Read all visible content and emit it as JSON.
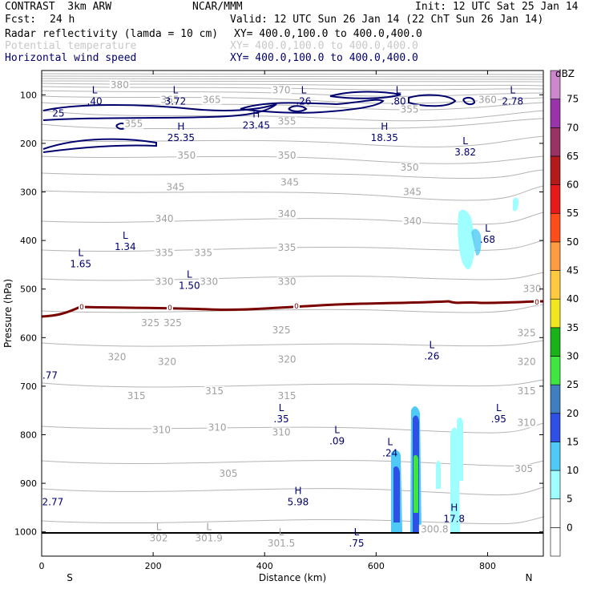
{
  "header": {
    "model": "CONTRAST  3km ARW",
    "institution": "NCAR/MMM",
    "init": "Init: 12 UTC Sat 25 Jan 14",
    "fcst_label": "Fcst:",
    "fcst_value": "24 h",
    "valid": "Valid: 12 UTC Sun 26 Jan 14 (22 ChT Sun 26 Jan 14)"
  },
  "fields": [
    {
      "name": "Radar reflectivity (lamda = 10 cm)",
      "xy": "XY= 400.0,100.0 to 400.0,400.0",
      "color": "#000000"
    },
    {
      "name": "Potential temperature",
      "xy": "XY= 400.0,100.0 to 400.0,400.0",
      "color": "#c8c8c8"
    },
    {
      "name": "Horizontal wind speed",
      "xy": "XY= 400.0,100.0 to 400.0,400.0",
      "color": "#00006e"
    }
  ],
  "chart_data": {
    "type": "cross-section contour",
    "xlabel": "Distance (km)",
    "ylabel": "Pressure (hPa)",
    "xlim": [
      0,
      900
    ],
    "ylim": [
      1050,
      50
    ],
    "x_ticks": [
      "0",
      "200",
      "400",
      "600",
      "800"
    ],
    "x_tick_values": [
      0,
      200,
      400,
      600,
      800
    ],
    "y_ticks": [
      "100",
      "200",
      "300",
      "400",
      "500",
      "600",
      "700",
      "800",
      "900",
      "1000"
    ],
    "y_tick_values": [
      100,
      200,
      300,
      400,
      500,
      600,
      700,
      800,
      900,
      1000
    ],
    "left_end_label": "S",
    "right_end_label": "N",
    "theta_labels": [
      {
        "text": "380",
        "x": 140,
        "p": 85
      },
      {
        "text": "365",
        "x": 230,
        "p": 115
      },
      {
        "text": "365",
        "x": 305,
        "p": 115
      },
      {
        "text": "370",
        "x": 430,
        "p": 95
      },
      {
        "text": "355",
        "x": 165,
        "p": 165
      },
      {
        "text": "355",
        "x": 440,
        "p": 160
      },
      {
        "text": "355",
        "x": 660,
        "p": 135
      },
      {
        "text": "360",
        "x": 800,
        "p": 115
      },
      {
        "text": "350",
        "x": 260,
        "p": 230
      },
      {
        "text": "350",
        "x": 440,
        "p": 230
      },
      {
        "text": "350",
        "x": 660,
        "p": 255
      },
      {
        "text": "345",
        "x": 240,
        "p": 295
      },
      {
        "text": "345",
        "x": 445,
        "p": 285
      },
      {
        "text": "345",
        "x": 665,
        "p": 305
      },
      {
        "text": "340",
        "x": 220,
        "p": 360
      },
      {
        "text": "340",
        "x": 440,
        "p": 350
      },
      {
        "text": "340",
        "x": 665,
        "p": 365
      },
      {
        "text": "335",
        "x": 220,
        "p": 430
      },
      {
        "text": "335",
        "x": 290,
        "p": 430
      },
      {
        "text": "335",
        "x": 440,
        "p": 420
      },
      {
        "text": "330",
        "x": 220,
        "p": 490
      },
      {
        "text": "330",
        "x": 300,
        "p": 490
      },
      {
        "text": "330",
        "x": 440,
        "p": 490
      },
      {
        "text": "330",
        "x": 880,
        "p": 505
      },
      {
        "text": "325",
        "x": 195,
        "p": 575
      },
      {
        "text": "325",
        "x": 235,
        "p": 575
      },
      {
        "text": "325",
        "x": 430,
        "p": 590
      },
      {
        "text": "325",
        "x": 870,
        "p": 595
      },
      {
        "text": "320",
        "x": 135,
        "p": 645
      },
      {
        "text": "320",
        "x": 225,
        "p": 655
      },
      {
        "text": "320",
        "x": 440,
        "p": 650
      },
      {
        "text": "320",
        "x": 870,
        "p": 655
      },
      {
        "text": "315",
        "x": 170,
        "p": 725
      },
      {
        "text": "315",
        "x": 310,
        "p": 715
      },
      {
        "text": "315",
        "x": 440,
        "p": 725
      },
      {
        "text": "315",
        "x": 870,
        "p": 715
      },
      {
        "text": "310",
        "x": 215,
        "p": 795
      },
      {
        "text": "310",
        "x": 315,
        "p": 790
      },
      {
        "text": "310",
        "x": 430,
        "p": 800
      },
      {
        "text": "310",
        "x": 870,
        "p": 780
      },
      {
        "text": "305",
        "x": 335,
        "p": 885
      },
      {
        "text": "305",
        "x": 865,
        "p": 875
      },
      {
        "text": "300.8",
        "x": 705,
        "p": 1000
      }
    ],
    "wind_labels": [
      {
        "type": "L",
        "value": ".40",
        "x": 95,
        "p": 100
      },
      {
        "type": "L",
        "value": "3.72",
        "x": 240,
        "p": 100
      },
      {
        "type": "L",
        "value": ".26",
        "x": 470,
        "p": 100
      },
      {
        "type": "L",
        "value": ".80",
        "x": 640,
        "p": 100
      },
      {
        "type": "L",
        "value": "2.78",
        "x": 845,
        "p": 100
      },
      {
        "type": "",
        "value": "25",
        "x": 30,
        "p": 125
      },
      {
        "type": "H",
        "value": "23.45",
        "x": 385,
        "p": 150
      },
      {
        "type": "H",
        "value": "25.35",
        "x": 250,
        "p": 175
      },
      {
        "type": "H",
        "value": "18.35",
        "x": 615,
        "p": 175
      },
      {
        "type": "L",
        "value": "3.82",
        "x": 760,
        "p": 205
      },
      {
        "type": "L",
        "value": ".68",
        "x": 800,
        "p": 385
      },
      {
        "type": "L",
        "value": "1.34",
        "x": 150,
        "p": 400
      },
      {
        "type": "L",
        "value": "1.65",
        "x": 70,
        "p": 435
      },
      {
        "type": "L",
        "value": "1.50",
        "x": 265,
        "p": 480
      },
      {
        "type": "L",
        "value": ".26",
        "x": 700,
        "p": 625
      },
      {
        "type": "",
        "value": ".77",
        "x": 15,
        "p": 665
      },
      {
        "type": "L",
        "value": ".95",
        "x": 820,
        "p": 755
      },
      {
        "type": "L",
        "value": ".35",
        "x": 430,
        "p": 755
      },
      {
        "type": "L",
        "value": ".09",
        "x": 530,
        "p": 800
      },
      {
        "type": "L",
        "value": ".24",
        "x": 625,
        "p": 825
      },
      {
        "type": "",
        "value": "2.77",
        "x": 20,
        "p": 925
      },
      {
        "type": "H",
        "value": "5.98",
        "x": 460,
        "p": 925
      },
      {
        "type": "H",
        "value": "17.8",
        "x": 740,
        "p": 960
      },
      {
        "type": "L",
        "value": "302",
        "x": 210,
        "p": 1000
      },
      {
        "type": "L",
        "value": "301.9",
        "x": 300,
        "p": 1000
      },
      {
        "type": "L",
        "value": "301.5",
        "x": 430,
        "p": 1010
      },
      {
        "type": "L",
        "value": ".75",
        "x": 565,
        "p": 1010
      }
    ],
    "freezing_level": {
      "label": "0",
      "p": 540
    },
    "colorbar": {
      "unit": "dBZ",
      "levels": [
        "0",
        "5",
        "10",
        "15",
        "20",
        "25",
        "30",
        "35",
        "40",
        "45",
        "50",
        "55",
        "60",
        "65",
        "70",
        "75"
      ],
      "colors": [
        "#ffffff",
        "#ffffff",
        "#9ffeff",
        "#4fc9f5",
        "#2e50e6",
        "#3f7fbf",
        "#3fe63f",
        "#19b319",
        "#f2e71e",
        "#ffc940",
        "#ff9b40",
        "#ff4d1a",
        "#e61a1a",
        "#b31a1a",
        "#993366",
        "#9933aa",
        "#cc88cc"
      ]
    }
  }
}
